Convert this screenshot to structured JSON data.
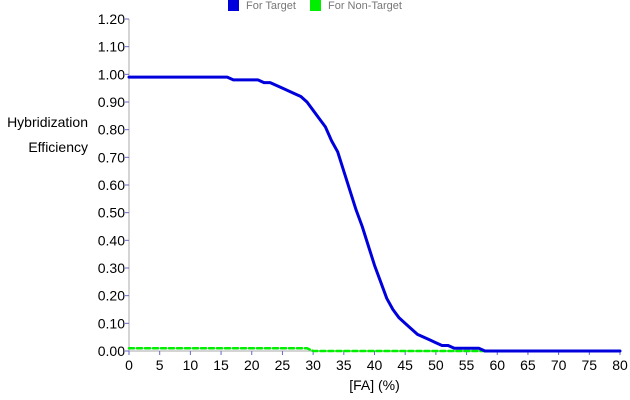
{
  "chart_data": {
    "type": "line",
    "xlabel": "[FA] (%)",
    "ylabel_lines": [
      "Hybridization",
      "Efficiency"
    ],
    "xlim": [
      0,
      80
    ],
    "ylim": [
      0,
      1.2
    ],
    "x_ticks": [
      "0",
      "5",
      "10",
      "15",
      "20",
      "25",
      "30",
      "35",
      "40",
      "45",
      "50",
      "55",
      "60",
      "65",
      "70",
      "75",
      "80"
    ],
    "y_ticks": [
      "0.00",
      "0.10",
      "0.20",
      "0.30",
      "0.40",
      "0.50",
      "0.60",
      "0.70",
      "0.80",
      "0.90",
      "1.00",
      "1.10",
      "1.20"
    ],
    "legend_position": "top-center",
    "grid": false,
    "series": [
      {
        "name": "For Target",
        "color": "#0000dd",
        "style": "solid",
        "points": [
          [
            0,
            0.99
          ],
          [
            5,
            0.99
          ],
          [
            10,
            0.99
          ],
          [
            15,
            0.99
          ],
          [
            16,
            0.99
          ],
          [
            17,
            0.98
          ],
          [
            19,
            0.98
          ],
          [
            21,
            0.98
          ],
          [
            22,
            0.97
          ],
          [
            23,
            0.97
          ],
          [
            25,
            0.95
          ],
          [
            27,
            0.93
          ],
          [
            28,
            0.92
          ],
          [
            29,
            0.9
          ],
          [
            30,
            0.87
          ],
          [
            31,
            0.84
          ],
          [
            32,
            0.81
          ],
          [
            33,
            0.76
          ],
          [
            34,
            0.72
          ],
          [
            35,
            0.65
          ],
          [
            36,
            0.58
          ],
          [
            37,
            0.51
          ],
          [
            38,
            0.45
          ],
          [
            39,
            0.38
          ],
          [
            40,
            0.31
          ],
          [
            41,
            0.25
          ],
          [
            42,
            0.19
          ],
          [
            43,
            0.15
          ],
          [
            44,
            0.12
          ],
          [
            45,
            0.1
          ],
          [
            46,
            0.08
          ],
          [
            47,
            0.06
          ],
          [
            48,
            0.05
          ],
          [
            49,
            0.04
          ],
          [
            50,
            0.03
          ],
          [
            51,
            0.02
          ],
          [
            52,
            0.02
          ],
          [
            53,
            0.01
          ],
          [
            55,
            0.01
          ],
          [
            57,
            0.01
          ],
          [
            58,
            0.0
          ],
          [
            80,
            0.0
          ]
        ]
      },
      {
        "name": "For Non-Target",
        "color": "#00ee00",
        "style": "dashed",
        "points": [
          [
            0,
            0.01
          ],
          [
            29,
            0.01
          ],
          [
            30,
            0.0
          ],
          [
            80,
            0.0
          ]
        ]
      }
    ]
  }
}
